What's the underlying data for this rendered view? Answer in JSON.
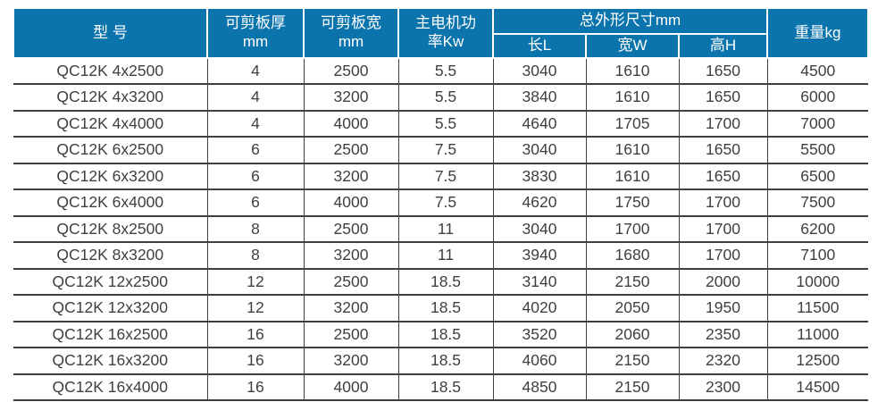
{
  "colors": {
    "header_bg": "#0b74ac",
    "header_text": "#ffffff",
    "body_text": "#3f3f3f",
    "grid_line": "#3f3f3f",
    "page_bg": "#ffffff"
  },
  "table": {
    "headers": {
      "model": "型 号",
      "thickness": "可剪板厚\nmm",
      "plate_width": "可剪板宽\nmm",
      "power": "主电机功\n率Kw",
      "dimensions_group": "总外形尺寸mm",
      "length": "长L",
      "width": "宽W",
      "height": "高H",
      "weight": "重量kg"
    },
    "column_keys": [
      "model",
      "thickness",
      "plate-width",
      "power",
      "length",
      "width",
      "height",
      "weight"
    ],
    "rows": [
      [
        "QC12K 4x2500",
        "4",
        "2500",
        "5.5",
        "3040",
        "1610",
        "1650",
        "4500"
      ],
      [
        "QC12K 4x3200",
        "4",
        "3200",
        "5.5",
        "3840",
        "1610",
        "1650",
        "6000"
      ],
      [
        "QC12K 4x4000",
        "4",
        "4000",
        "5.5",
        "4640",
        "1705",
        "1700",
        "7000"
      ],
      [
        "QC12K 6x2500",
        "6",
        "2500",
        "7.5",
        "3040",
        "1610",
        "1650",
        "5500"
      ],
      [
        "QC12K 6x3200",
        "6",
        "3200",
        "7.5",
        "3830",
        "1610",
        "1650",
        "6500"
      ],
      [
        "QC12K 6x4000",
        "6",
        "4000",
        "7.5",
        "4620",
        "1750",
        "1700",
        "7500"
      ],
      [
        "QC12K 8x2500",
        "8",
        "2500",
        "11",
        "3040",
        "1700",
        "1700",
        "6200"
      ],
      [
        "QC12K 8x3200",
        "8",
        "3200",
        "11",
        "3940",
        "1680",
        "1700",
        "7100"
      ],
      [
        "QC12K 12x2500",
        "12",
        "2500",
        "18.5",
        "3140",
        "2150",
        "2000",
        "10000"
      ],
      [
        "QC12K 12x3200",
        "12",
        "3200",
        "18.5",
        "4020",
        "2050",
        "1950",
        "11500"
      ],
      [
        "QC12K 16x2500",
        "16",
        "2500",
        "18.5",
        "3520",
        "2060",
        "2350",
        "11000"
      ],
      [
        "QC12K 16x3200",
        "16",
        "3200",
        "18.5",
        "4060",
        "2150",
        "2320",
        "12500"
      ],
      [
        "QC12K 16x4000",
        "16",
        "4000",
        "18.5",
        "4850",
        "2150",
        "2300",
        "14500"
      ]
    ]
  }
}
